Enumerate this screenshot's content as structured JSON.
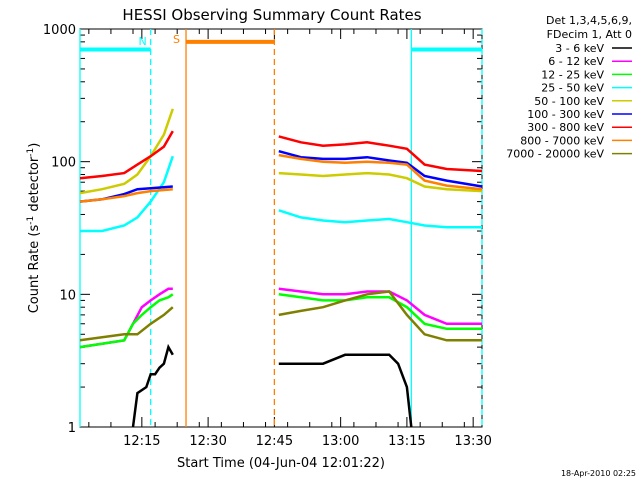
{
  "chart_data": {
    "type": "line",
    "title": "HESSI Observing Summary Count Rates",
    "xlabel": "Start Time (04-Jun-04 12:01:22)",
    "ylabel_parts": [
      "Count Rate (s",
      "-1",
      " detector",
      "-1",
      ")"
    ],
    "yscale": "log",
    "ylim": [
      1,
      1000
    ],
    "xlim_min": [
      0,
      91
    ],
    "x_ticks": [
      {
        "value": 14,
        "label": "12:15"
      },
      {
        "value": 29,
        "label": "12:30"
      },
      {
        "value": 44,
        "label": "12:45"
      },
      {
        "value": 59,
        "label": "13:00"
      },
      {
        "value": 74,
        "label": "13:15"
      },
      {
        "value": 89,
        "label": "13:30"
      }
    ],
    "y_ticks": [
      {
        "value": 1,
        "label": "1"
      },
      {
        "value": 10,
        "label": "10"
      },
      {
        "value": 100,
        "label": "100"
      },
      {
        "value": 1000,
        "label": "1000"
      }
    ],
    "legend_header": [
      "Det 1,3,4,5,6,9,",
      "FDecim 1, Att 0"
    ],
    "legend_position": "right",
    "series": [
      {
        "name": "3 - 6 keV",
        "color": "#000000",
        "segments": [
          [
            [
              12,
              1.0
            ],
            [
              13,
              1.8
            ],
            [
              15,
              2.0
            ],
            [
              16,
              2.5
            ],
            [
              17,
              2.5
            ],
            [
              18,
              2.8
            ],
            [
              19,
              3.0
            ],
            [
              20,
              4.0
            ],
            [
              21,
              3.5
            ]
          ],
          [
            [
              45,
              3.0
            ],
            [
              50,
              3.0
            ],
            [
              55,
              3.0
            ],
            [
              60,
              3.5
            ],
            [
              65,
              3.5
            ],
            [
              70,
              3.5
            ],
            [
              72,
              3.0
            ],
            [
              74,
              2.0
            ],
            [
              75,
              1.0
            ]
          ]
        ]
      },
      {
        "name": "6 - 12 keV",
        "color": "#ff00ff",
        "segments": [
          [
            [
              0,
              4.0
            ],
            [
              10,
              4.5
            ],
            [
              12,
              6.0
            ],
            [
              14,
              8.0
            ],
            [
              16,
              9.0
            ],
            [
              18,
              10.0
            ],
            [
              20,
              11.0
            ],
            [
              21,
              11.0
            ]
          ],
          [
            [
              45,
              11.0
            ],
            [
              50,
              10.5
            ],
            [
              55,
              10.0
            ],
            [
              60,
              10.0
            ],
            [
              65,
              10.5
            ],
            [
              70,
              10.5
            ],
            [
              74,
              9.0
            ],
            [
              78,
              7.0
            ],
            [
              83,
              6.0
            ],
            [
              91,
              6.0
            ]
          ]
        ]
      },
      {
        "name": "12 - 25 keV",
        "color": "#00ff00",
        "segments": [
          [
            [
              0,
              4.0
            ],
            [
              10,
              4.5
            ],
            [
              12,
              6.0
            ],
            [
              14,
              7.0
            ],
            [
              16,
              8.0
            ],
            [
              18,
              9.0
            ],
            [
              20,
              9.5
            ],
            [
              21,
              10.0
            ]
          ],
          [
            [
              45,
              10.0
            ],
            [
              50,
              9.5
            ],
            [
              55,
              9.0
            ],
            [
              60,
              9.0
            ],
            [
              65,
              9.5
            ],
            [
              70,
              9.5
            ],
            [
              74,
              8.0
            ],
            [
              78,
              6.0
            ],
            [
              83,
              5.5
            ],
            [
              91,
              5.5
            ]
          ]
        ]
      },
      {
        "name": "25 - 50 keV",
        "color": "#00ffff",
        "segments": [
          [
            [
              0,
              30
            ],
            [
              5,
              30
            ],
            [
              10,
              33
            ],
            [
              13,
              38
            ],
            [
              16,
              50
            ],
            [
              19,
              70
            ],
            [
              21,
              110
            ]
          ],
          [
            [
              45,
              43
            ],
            [
              50,
              38
            ],
            [
              55,
              36
            ],
            [
              60,
              35
            ],
            [
              65,
              36
            ],
            [
              70,
              37
            ],
            [
              74,
              35
            ],
            [
              78,
              33
            ],
            [
              83,
              32
            ],
            [
              91,
              32
            ]
          ]
        ]
      },
      {
        "name": "50 - 100 keV",
        "color": "#cccc00",
        "segments": [
          [
            [
              0,
              58
            ],
            [
              5,
              62
            ],
            [
              10,
              68
            ],
            [
              13,
              80
            ],
            [
              16,
              110
            ],
            [
              19,
              160
            ],
            [
              21,
              250
            ]
          ],
          [
            [
              45,
              82
            ],
            [
              50,
              80
            ],
            [
              55,
              78
            ],
            [
              60,
              80
            ],
            [
              65,
              82
            ],
            [
              70,
              80
            ],
            [
              74,
              75
            ],
            [
              78,
              65
            ],
            [
              83,
              62
            ],
            [
              91,
              60
            ]
          ]
        ]
      },
      {
        "name": "100 - 300 keV",
        "color": "#0000ff",
        "segments": [
          [
            [
              0,
              50
            ],
            [
              5,
              52
            ],
            [
              10,
              57
            ],
            [
              13,
              62
            ],
            [
              16,
              63
            ],
            [
              21,
              65
            ]
          ],
          [
            [
              45,
              120
            ],
            [
              50,
              108
            ],
            [
              55,
              105
            ],
            [
              60,
              105
            ],
            [
              65,
              108
            ],
            [
              70,
              102
            ],
            [
              74,
              98
            ],
            [
              78,
              78
            ],
            [
              83,
              72
            ],
            [
              91,
              65
            ]
          ]
        ]
      },
      {
        "name": "300 - 800 keV",
        "color": "#ff0000",
        "segments": [
          [
            [
              0,
              75
            ],
            [
              5,
              78
            ],
            [
              10,
              82
            ],
            [
              13,
              95
            ],
            [
              16,
              110
            ],
            [
              19,
              130
            ],
            [
              21,
              170
            ]
          ],
          [
            [
              45,
              155
            ],
            [
              50,
              140
            ],
            [
              55,
              132
            ],
            [
              60,
              135
            ],
            [
              65,
              140
            ],
            [
              70,
              132
            ],
            [
              74,
              125
            ],
            [
              78,
              95
            ],
            [
              83,
              88
            ],
            [
              91,
              85
            ]
          ]
        ]
      },
      {
        "name": "800 - 7000 keV",
        "color": "#ff8000",
        "segments": [
          [
            [
              0,
              50
            ],
            [
              5,
              52
            ],
            [
              10,
              55
            ],
            [
              13,
              58
            ],
            [
              16,
              60
            ],
            [
              21,
              62
            ]
          ],
          [
            [
              45,
              112
            ],
            [
              50,
              105
            ],
            [
              55,
              100
            ],
            [
              60,
              98
            ],
            [
              65,
              100
            ],
            [
              70,
              98
            ],
            [
              74,
              95
            ],
            [
              78,
              72
            ],
            [
              83,
              66
            ],
            [
              91,
              62
            ]
          ]
        ]
      },
      {
        "name": "7000 - 20000 keV",
        "color": "#808000",
        "segments": [
          [
            [
              0,
              4.5
            ],
            [
              10,
              5.0
            ],
            [
              13,
              5.0
            ],
            [
              16,
              6.0
            ],
            [
              19,
              7.0
            ],
            [
              21,
              8.0
            ]
          ],
          [
            [
              45,
              7.0
            ],
            [
              50,
              7.5
            ],
            [
              55,
              8.0
            ],
            [
              60,
              9.0
            ],
            [
              65,
              10.0
            ],
            [
              70,
              10.5
            ],
            [
              74,
              7.0
            ],
            [
              78,
              5.0
            ],
            [
              83,
              4.5
            ],
            [
              91,
              4.5
            ]
          ]
        ]
      }
    ],
    "flag_lines": [
      {
        "label": "",
        "color": "#00ffff",
        "y": 700,
        "x_from": 0,
        "x_to": 16,
        "style": "solid",
        "orientation": "horizontal"
      },
      {
        "label": "",
        "color": "#00ffff",
        "y": 700,
        "x_from": 75,
        "x_to": 91,
        "style": "solid",
        "orientation": "horizontal"
      },
      {
        "label": "",
        "color": "#ff8000",
        "y": 800,
        "x_from": 24,
        "x_to": 44,
        "style": "solid",
        "orientation": "horizontal"
      },
      {
        "label": "",
        "color": "#00ffff",
        "x": 0,
        "style": "solid",
        "orientation": "vertical"
      },
      {
        "label": "N",
        "color": "#00ffff",
        "x": 16,
        "style": "dashed",
        "orientation": "vertical"
      },
      {
        "label": "S",
        "color": "#ff8000",
        "x": 24,
        "style": "solid",
        "orientation": "vertical"
      },
      {
        "label": "",
        "color": "#ff8000",
        "x": 44,
        "style": "dashed",
        "orientation": "vertical"
      },
      {
        "label": "",
        "color": "#00ffff",
        "x": 75,
        "style": "solid",
        "orientation": "vertical"
      },
      {
        "label": "",
        "color": "#00ffff",
        "x": 91,
        "style": "dashed",
        "orientation": "vertical"
      }
    ],
    "timestamp": "18-Apr-2010 02:25"
  }
}
